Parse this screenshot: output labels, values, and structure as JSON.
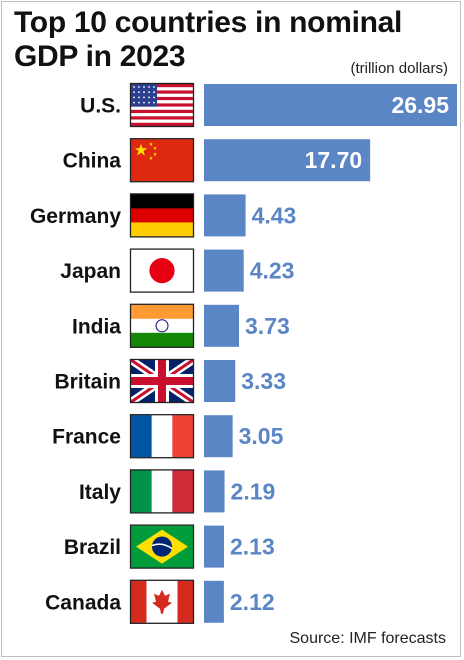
{
  "chart_data": {
    "type": "bar",
    "orientation": "horizontal",
    "title_line1": "Top 10 countries in nominal",
    "title_line2": "GDP in 2023",
    "unit": "(trillion dollars)",
    "source": "Source: IMF forecasts",
    "categories": [
      "U.S.",
      "China",
      "Germany",
      "Japan",
      "India",
      "Britain",
      "France",
      "Italy",
      "Brazil",
      "Canada"
    ],
    "values": [
      26.95,
      17.7,
      4.43,
      4.23,
      3.73,
      3.33,
      3.05,
      2.19,
      2.13,
      2.12
    ],
    "value_labels": [
      "26.95",
      "17.70",
      "4.43",
      "4.23",
      "3.73",
      "3.33",
      "3.05",
      "2.19",
      "2.13",
      "2.12"
    ],
    "flags": [
      "us-flag-icon",
      "china-flag-icon",
      "germany-flag-icon",
      "japan-flag-icon",
      "india-flag-icon",
      "britain-flag-icon",
      "france-flag-icon",
      "italy-flag-icon",
      "brazil-flag-icon",
      "canada-flag-icon"
    ],
    "bar_color": "#5b86c6",
    "value_label_color_inside": "#ffffff",
    "value_label_color_outside": "#5b86c6",
    "xlim": [
      0,
      26.95
    ],
    "grid": false,
    "legend": "none"
  }
}
